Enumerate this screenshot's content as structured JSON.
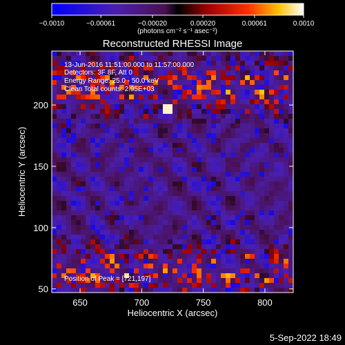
{
  "chart_data": {
    "type": "heatmap",
    "title": "Reconstructed RHESSI Image",
    "xlabel": "Heliocentric X (arcsec)",
    "ylabel": "Heliocentric Y (arcsec)",
    "xlim": [
      627,
      823
    ],
    "ylim": [
      47,
      244
    ],
    "x_ticks": [
      650,
      700,
      750,
      800
    ],
    "y_ticks": [
      50,
      100,
      150,
      200
    ],
    "colorbar": {
      "min": -0.001,
      "max": 0.001,
      "tick_labels": [
        "−0.0010",
        "−0.00061",
        "−0.00020",
        "0.00020",
        "0.00061",
        "0.0010"
      ],
      "tick_values": [
        -0.001,
        -0.00061,
        -0.0002,
        0.0002,
        0.00061,
        0.001
      ],
      "label": "(photons cm⁻² s⁻¹ asec⁻²)",
      "colormap": "blue-purple-red-yellow-white"
    },
    "annotations": [
      "13-Jun-2016 11:51:00.000 to 11:57:00.000",
      "Detectors: 3F 8F, Att 0",
      "Energy Range: 25.0 - 50.0 keV",
      "Clean    Total counts: 2.95E+03"
    ],
    "peak_label": "Position of Peak = [721,197]",
    "peak": [
      721,
      197
    ],
    "grid": false
  },
  "footer": {
    "timestamp": "5-Sep-2022 18:49"
  },
  "colors": {
    "background": "#000000",
    "foreground": "#ffffff",
    "cmap_low": "#1010ff",
    "cmap_mid": "#5a2a80",
    "cmap_high": "#ff1010",
    "cmap_top": "#ffffff"
  }
}
